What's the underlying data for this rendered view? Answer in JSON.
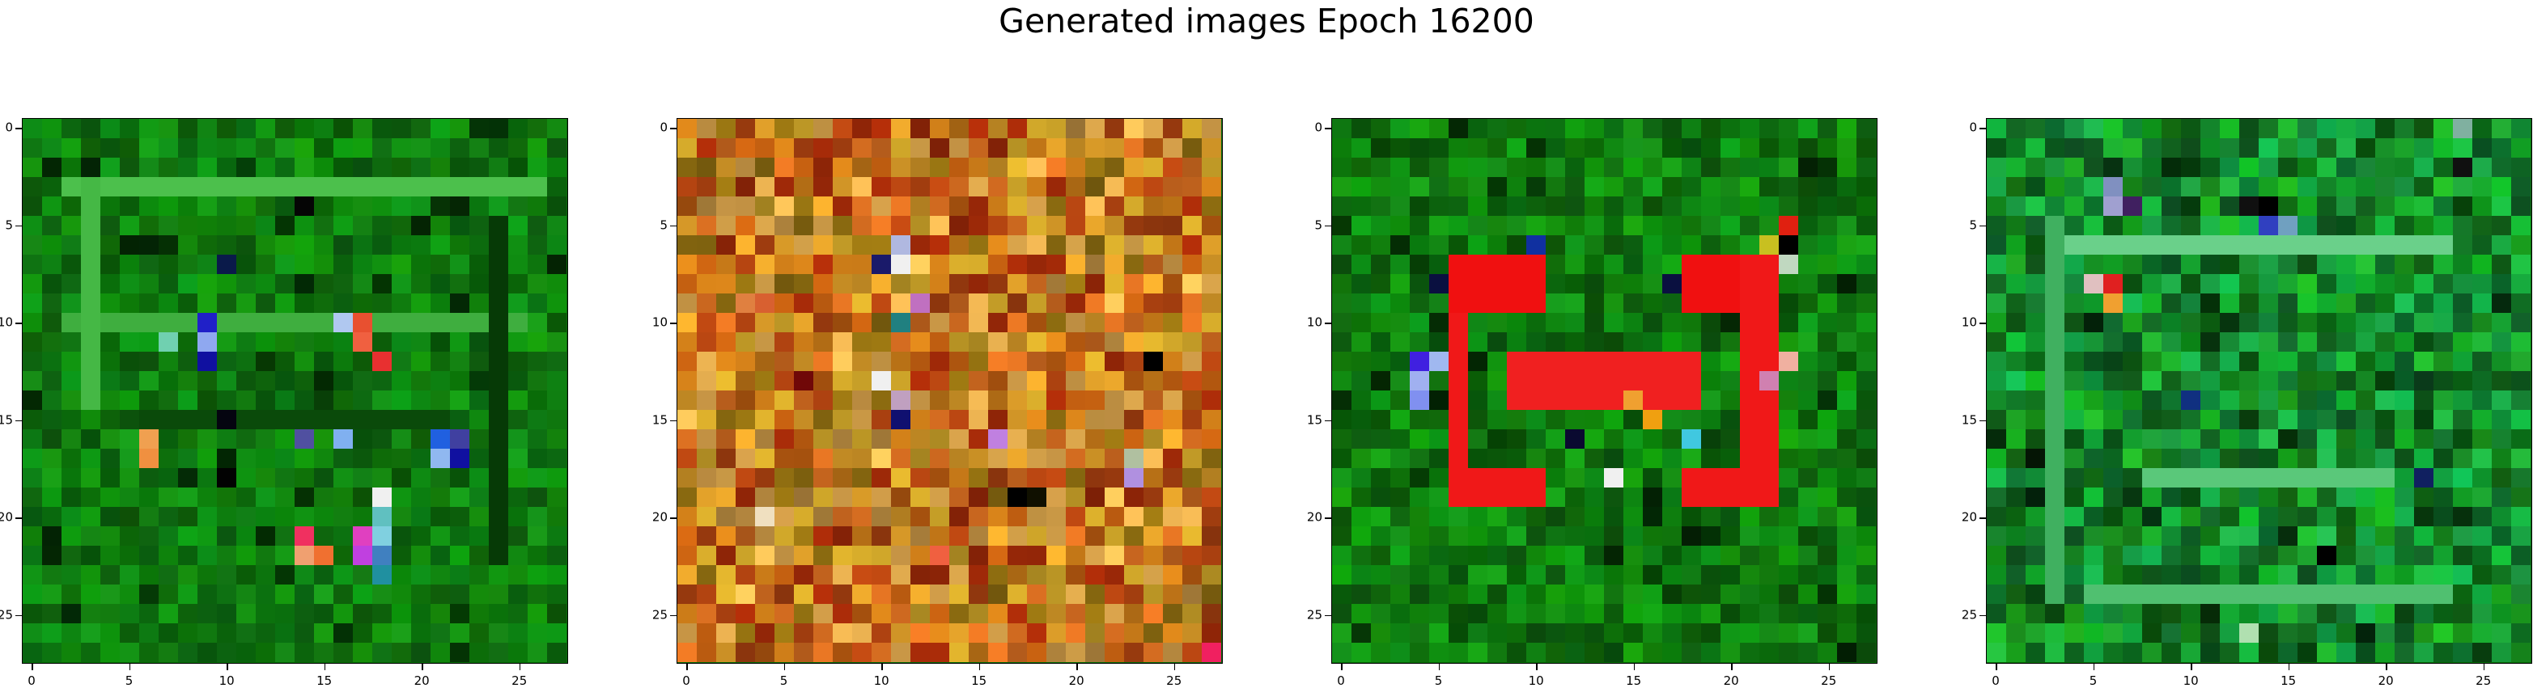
{
  "figure": {
    "suptitle": "Generated images Epoch 16200"
  },
  "grid_size": 28,
  "ticks": {
    "labels": [
      "0",
      "5",
      "10",
      "15",
      "20",
      "25"
    ]
  },
  "images": [
    {
      "name": "generated-image-1",
      "base_color": "#0f7a0f",
      "variation": 0.35,
      "features": [
        {
          "kind": "hline",
          "row": 3,
          "from": 2,
          "to": 26,
          "color": "#4cc04c"
        },
        {
          "kind": "hline",
          "row": 10,
          "from": 2,
          "to": 25,
          "color": "#3fae3f"
        },
        {
          "kind": "vline",
          "col": 3,
          "from": 3,
          "to": 14,
          "color": "#45b845"
        },
        {
          "kind": "vline",
          "col": 24,
          "from": 5,
          "to": 22,
          "color": "#063a06"
        },
        {
          "kind": "hline",
          "row": 15,
          "from": 6,
          "to": 21,
          "color": "#0a4a0a"
        },
        {
          "kind": "cell",
          "row": 4,
          "col": 14,
          "color": "#050505"
        },
        {
          "kind": "cell",
          "row": 7,
          "col": 10,
          "color": "#0a1a4a"
        },
        {
          "kind": "cell",
          "row": 10,
          "col": 9,
          "color": "#2020c8"
        },
        {
          "kind": "cell",
          "row": 11,
          "col": 9,
          "color": "#8fa8f0"
        },
        {
          "kind": "cell",
          "row": 12,
          "col": 9,
          "color": "#1010a0"
        },
        {
          "kind": "cell",
          "row": 11,
          "col": 7,
          "color": "#70d0b0"
        },
        {
          "kind": "cell",
          "row": 10,
          "col": 17,
          "color": "#e85030"
        },
        {
          "kind": "cell",
          "row": 11,
          "col": 17,
          "color": "#f06040"
        },
        {
          "kind": "cell",
          "row": 12,
          "col": 18,
          "color": "#e83030"
        },
        {
          "kind": "cell",
          "row": 10,
          "col": 16,
          "color": "#b0c8f0"
        },
        {
          "kind": "cell",
          "row": 16,
          "col": 6,
          "color": "#f0a050"
        },
        {
          "kind": "cell",
          "row": 17,
          "col": 6,
          "color": "#f09040"
        },
        {
          "kind": "cell",
          "row": 16,
          "col": 14,
          "color": "#5050a0"
        },
        {
          "kind": "cell",
          "row": 16,
          "col": 16,
          "color": "#80b0f0"
        },
        {
          "kind": "cell",
          "row": 16,
          "col": 21,
          "color": "#2060e0"
        },
        {
          "kind": "cell",
          "row": 16,
          "col": 22,
          "color": "#4040a0"
        },
        {
          "kind": "cell",
          "row": 17,
          "col": 21,
          "color": "#90b8f0"
        },
        {
          "kind": "cell",
          "row": 17,
          "col": 22,
          "color": "#1010a0"
        },
        {
          "kind": "cell",
          "row": 19,
          "col": 18,
          "color": "#f0f0f0"
        },
        {
          "kind": "cell",
          "row": 20,
          "col": 18,
          "color": "#60c0c0"
        },
        {
          "kind": "cell",
          "row": 21,
          "col": 14,
          "color": "#f03060"
        },
        {
          "kind": "cell",
          "row": 21,
          "col": 17,
          "color": "#e040c0"
        },
        {
          "kind": "cell",
          "row": 21,
          "col": 18,
          "color": "#80d0e0"
        },
        {
          "kind": "cell",
          "row": 22,
          "col": 14,
          "color": "#f0a070"
        },
        {
          "kind": "cell",
          "row": 22,
          "col": 15,
          "color": "#f07030"
        },
        {
          "kind": "cell",
          "row": 22,
          "col": 17,
          "color": "#c040e0"
        },
        {
          "kind": "cell",
          "row": 22,
          "col": 18,
          "color": "#4080c0"
        },
        {
          "kind": "cell",
          "row": 23,
          "col": 18,
          "color": "#2090a0"
        },
        {
          "kind": "cell",
          "row": 15,
          "col": 10,
          "color": "#050510"
        },
        {
          "kind": "cell",
          "row": 18,
          "col": 10,
          "color": "#020202"
        }
      ]
    },
    {
      "name": "generated-image-2",
      "palette": [
        "#c87a18",
        "#b85a10",
        "#d89a28",
        "#a84010",
        "#c8a028",
        "#9a2808",
        "#d06a20",
        "#b88a40",
        "#e8b050",
        "#8a6a10"
      ],
      "features": [
        {
          "kind": "cell",
          "row": 6,
          "col": 11,
          "color": "#b0b8e0"
        },
        {
          "kind": "cell",
          "row": 7,
          "col": 11,
          "color": "#f0f0f0"
        },
        {
          "kind": "cell",
          "row": 7,
          "col": 10,
          "color": "#1a1a6a"
        },
        {
          "kind": "cell",
          "row": 9,
          "col": 12,
          "color": "#c070c0"
        },
        {
          "kind": "cell",
          "row": 10,
          "col": 11,
          "color": "#208080"
        },
        {
          "kind": "cell",
          "row": 13,
          "col": 10,
          "color": "#f0f0f0"
        },
        {
          "kind": "cell",
          "row": 14,
          "col": 11,
          "color": "#c0a0c0"
        },
        {
          "kind": "cell",
          "row": 15,
          "col": 11,
          "color": "#101070"
        },
        {
          "kind": "cell",
          "row": 12,
          "col": 24,
          "color": "#000000"
        },
        {
          "kind": "cell",
          "row": 19,
          "col": 17,
          "color": "#000000"
        },
        {
          "kind": "cell",
          "row": 19,
          "col": 18,
          "color": "#101000"
        },
        {
          "kind": "cell",
          "row": 18,
          "col": 23,
          "color": "#b090e0"
        },
        {
          "kind": "cell",
          "row": 17,
          "col": 23,
          "color": "#b0c0a0"
        },
        {
          "kind": "cell",
          "row": 16,
          "col": 16,
          "color": "#c080e0"
        },
        {
          "kind": "cell",
          "row": 27,
          "col": 27,
          "color": "#f02060"
        },
        {
          "kind": "cell",
          "row": 20,
          "col": 4,
          "color": "#f0e0c0"
        },
        {
          "kind": "cell",
          "row": 22,
          "col": 13,
          "color": "#f06040"
        },
        {
          "kind": "cell",
          "row": 9,
          "col": 3,
          "color": "#e08040"
        },
        {
          "kind": "cell",
          "row": 9,
          "col": 4,
          "color": "#d86030"
        },
        {
          "kind": "cell",
          "row": 13,
          "col": 6,
          "color": "#700808"
        }
      ]
    },
    {
      "name": "generated-image-3",
      "base_color": "#0f7a0f",
      "variation": 0.4,
      "features": [
        {
          "kind": "rect",
          "row0": 7,
          "row1": 19,
          "col0": 6,
          "col1": 6,
          "color": "#f01818"
        },
        {
          "kind": "rect",
          "row0": 7,
          "row1": 9,
          "col0": 6,
          "col1": 10,
          "color": "#f01010"
        },
        {
          "kind": "rect",
          "row0": 12,
          "row1": 14,
          "col0": 9,
          "col1": 18,
          "color": "#f02020"
        },
        {
          "kind": "rect",
          "row0": 18,
          "row1": 19,
          "col0": 6,
          "col1": 10,
          "color": "#f01818"
        },
        {
          "kind": "rect",
          "row0": 7,
          "row1": 9,
          "col0": 18,
          "col1": 22,
          "color": "#f01010"
        },
        {
          "kind": "rect",
          "row0": 7,
          "row1": 19,
          "col0": 21,
          "col1": 22,
          "color": "#f01818"
        },
        {
          "kind": "rect",
          "row0": 18,
          "row1": 19,
          "col0": 18,
          "col1": 22,
          "color": "#f01818"
        },
        {
          "kind": "cell",
          "row": 6,
          "col": 10,
          "color": "#1030a0"
        },
        {
          "kind": "cell",
          "row": 12,
          "col": 4,
          "color": "#4020e0"
        },
        {
          "kind": "cell",
          "row": 13,
          "col": 4,
          "color": "#a0b0f0"
        },
        {
          "kind": "cell",
          "row": 14,
          "col": 4,
          "color": "#8090f0"
        },
        {
          "kind": "cell",
          "row": 12,
          "col": 5,
          "color": "#a0b8f0"
        },
        {
          "kind": "cell",
          "row": 18,
          "col": 14,
          "color": "#f0f0f0"
        },
        {
          "kind": "cell",
          "row": 16,
          "col": 18,
          "color": "#40c8e0"
        },
        {
          "kind": "cell",
          "row": 15,
          "col": 16,
          "color": "#f0a010"
        },
        {
          "kind": "cell",
          "row": 14,
          "col": 15,
          "color": "#f0a030"
        },
        {
          "kind": "cell",
          "row": 6,
          "col": 23,
          "color": "#000000"
        },
        {
          "kind": "cell",
          "row": 6,
          "col": 22,
          "color": "#c8c020"
        },
        {
          "kind": "cell",
          "row": 5,
          "col": 23,
          "color": "#e02010"
        },
        {
          "kind": "cell",
          "row": 7,
          "col": 23,
          "color": "#c0d8c0"
        },
        {
          "kind": "cell",
          "row": 12,
          "col": 23,
          "color": "#f0b0a0"
        },
        {
          "kind": "cell",
          "row": 13,
          "col": 22,
          "color": "#d080b0"
        },
        {
          "kind": "cell",
          "row": 16,
          "col": 12,
          "color": "#0a0a30"
        },
        {
          "kind": "cell",
          "row": 8,
          "col": 5,
          "color": "#0a1040"
        },
        {
          "kind": "cell",
          "row": 8,
          "col": 17,
          "color": "#0a1040"
        }
      ]
    },
    {
      "name": "generated-image-4",
      "base_color": "#148a2a",
      "variation": 0.45,
      "features": [
        {
          "kind": "hline",
          "row": 6,
          "from": 3,
          "to": 23,
          "color": "#6ad08a"
        },
        {
          "kind": "hline",
          "row": 18,
          "from": 8,
          "to": 20,
          "color": "#5ac87a"
        },
        {
          "kind": "hline",
          "row": 24,
          "from": 5,
          "to": 23,
          "color": "#50c070"
        },
        {
          "kind": "vline",
          "col": 3,
          "from": 5,
          "to": 24,
          "color": "#40b060"
        },
        {
          "kind": "cell",
          "row": 3,
          "col": 6,
          "color": "#8090c0"
        },
        {
          "kind": "cell",
          "row": 4,
          "col": 6,
          "color": "#a0a0d0"
        },
        {
          "kind": "cell",
          "row": 4,
          "col": 7,
          "color": "#402060"
        },
        {
          "kind": "cell",
          "row": 8,
          "col": 6,
          "color": "#e02020"
        },
        {
          "kind": "cell",
          "row": 8,
          "col": 5,
          "color": "#e0c0c0"
        },
        {
          "kind": "cell",
          "row": 9,
          "col": 6,
          "color": "#f0a030"
        },
        {
          "kind": "cell",
          "row": 4,
          "col": 13,
          "color": "#101010"
        },
        {
          "kind": "cell",
          "row": 4,
          "col": 14,
          "color": "#000000"
        },
        {
          "kind": "cell",
          "row": 5,
          "col": 14,
          "color": "#3040c0"
        },
        {
          "kind": "cell",
          "row": 5,
          "col": 15,
          "color": "#70a0c0"
        },
        {
          "kind": "cell",
          "row": 14,
          "col": 10,
          "color": "#103080"
        },
        {
          "kind": "cell",
          "row": 18,
          "col": 22,
          "color": "#102060"
        },
        {
          "kind": "cell",
          "row": 22,
          "col": 17,
          "color": "#000000"
        },
        {
          "kind": "cell",
          "row": 26,
          "col": 13,
          "color": "#b0e0b0"
        },
        {
          "kind": "cell",
          "row": 0,
          "col": 24,
          "color": "#80b0a0"
        },
        {
          "kind": "cell",
          "row": 2,
          "col": 24,
          "color": "#101010"
        },
        {
          "kind": "cell",
          "row": 13,
          "col": 22,
          "color": "#0a3a1a"
        },
        {
          "kind": "cell",
          "row": 17,
          "col": 2,
          "color": "#051505"
        }
      ]
    }
  ]
}
